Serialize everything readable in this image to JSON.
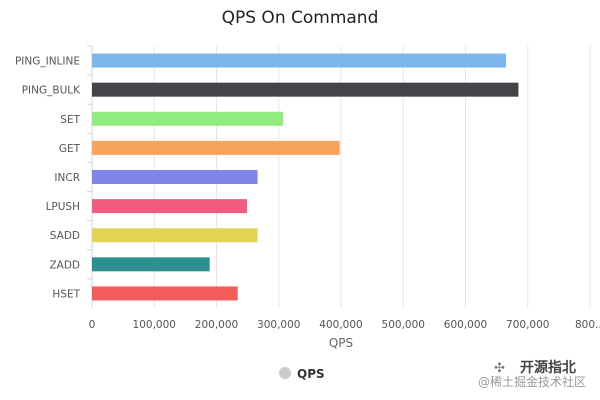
{
  "chart_data": {
    "type": "bar",
    "orientation": "horizontal",
    "title": "QPS On Command",
    "categories": [
      "PING_INLINE",
      "PING_BULK",
      "SET",
      "GET",
      "INCR",
      "LPUSH",
      "SADD",
      "ZADD",
      "HSET"
    ],
    "series": [
      {
        "name": "QPS",
        "values": [
          665000,
          685000,
          307000,
          398000,
          266000,
          249000,
          266000,
          189000,
          234000
        ],
        "colors": [
          "#7cb5ec",
          "#434348",
          "#90ed7d",
          "#f7a35c",
          "#8085e9",
          "#f15c80",
          "#e4d354",
          "#2b908f",
          "#f45b5b"
        ]
      }
    ],
    "xlabel": "QPS",
    "ylabel": "",
    "xlim": [
      0,
      800000
    ],
    "x_ticks": [
      "0",
      "100,000",
      "200,000",
      "300,000",
      "400,000",
      "500,000",
      "600,000",
      "700,000",
      "800..."
    ],
    "grid": true,
    "legend": {
      "position": "bottom-center",
      "marker_color": "#cccccc"
    }
  },
  "watermark": {
    "brand": "开源指北",
    "sub": "@稀土掘金技术社区"
  }
}
